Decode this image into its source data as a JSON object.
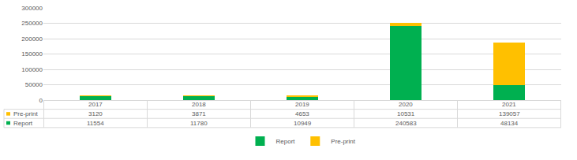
{
  "chart_data": {
    "type": "bar",
    "stacked": true,
    "categories": [
      "2017",
      "2018",
      "2019",
      "2020",
      "2021"
    ],
    "series": [
      {
        "name": "Report",
        "color": "#00b050",
        "values": [
          11554,
          11780,
          10949,
          240583,
          48134
        ]
      },
      {
        "name": "Pre-print",
        "color": "#ffc000",
        "values": [
          3120,
          3871,
          4653,
          10531,
          139057
        ]
      }
    ],
    "ylim": [
      0,
      300000
    ],
    "yticks": [
      0,
      50000,
      100000,
      150000,
      200000,
      250000,
      300000
    ],
    "grid": true,
    "legend": "bottom"
  }
}
